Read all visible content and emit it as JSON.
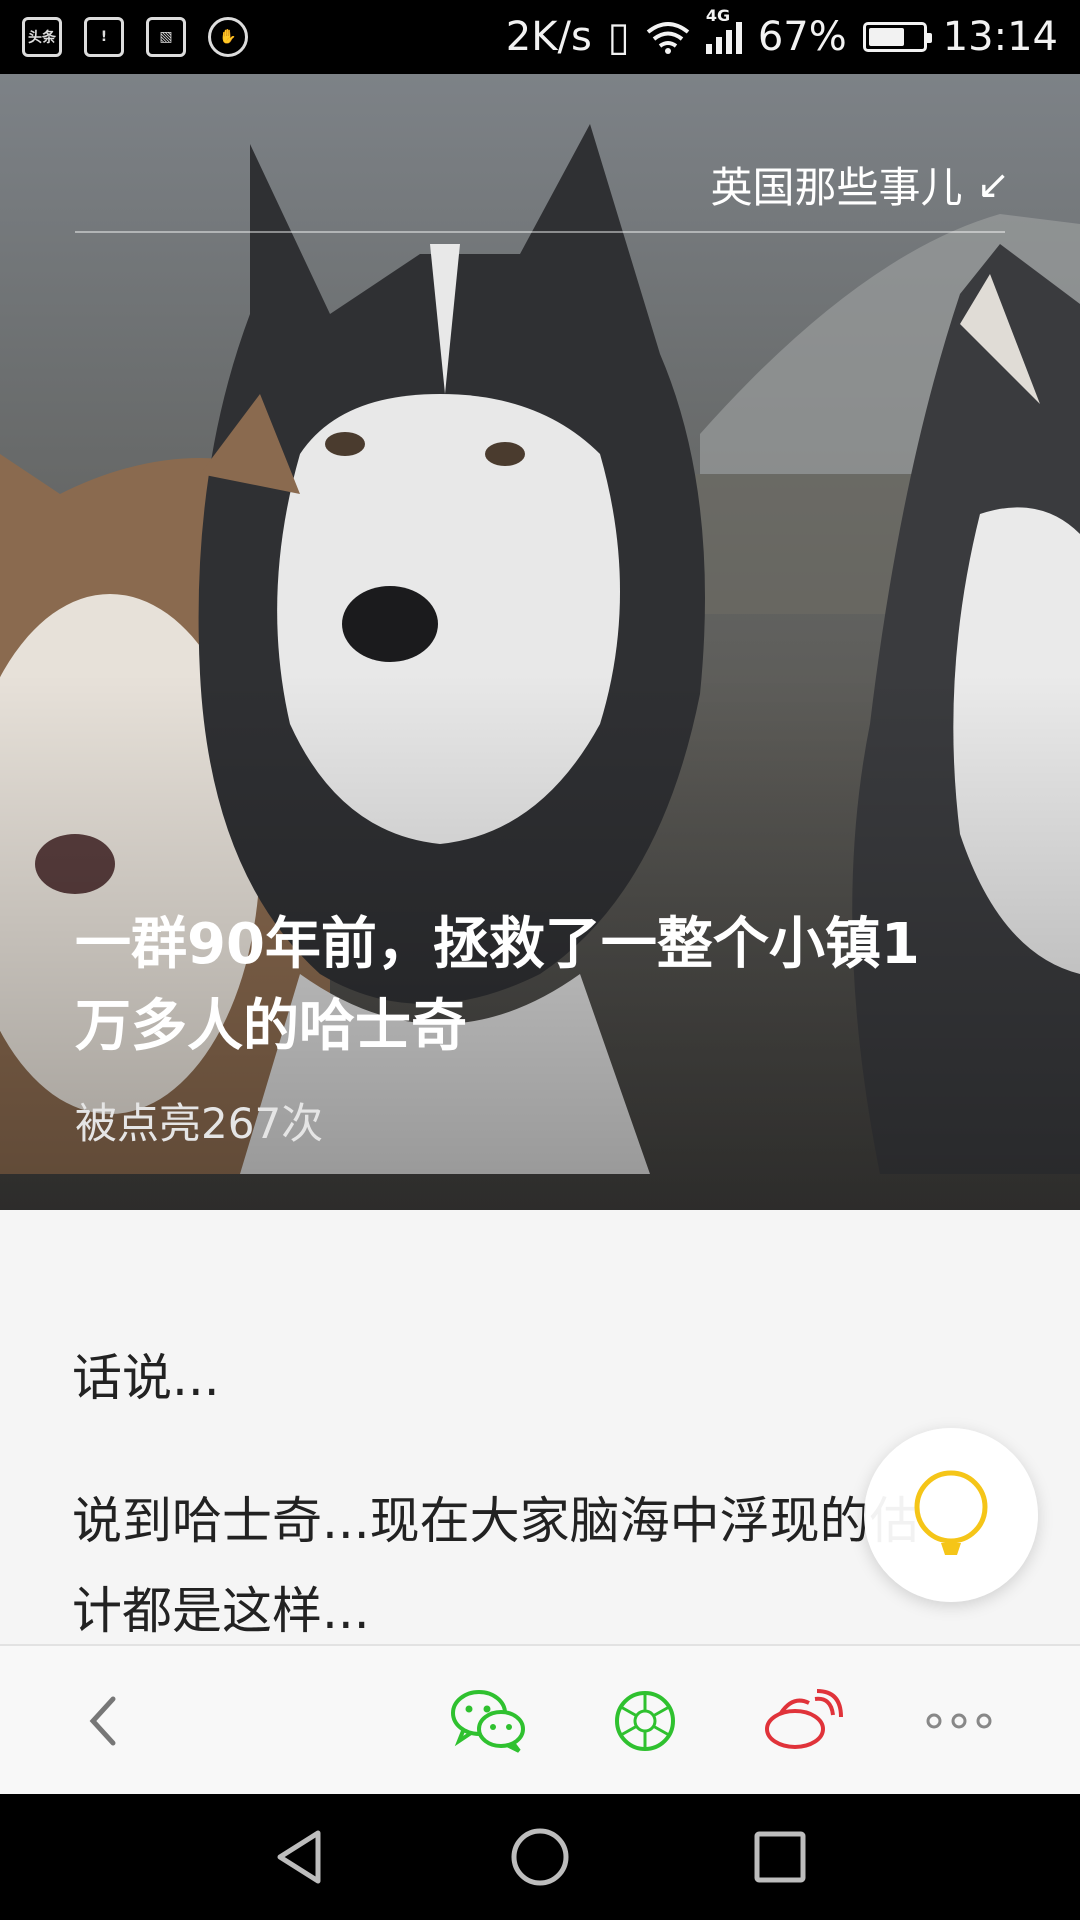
{
  "status_bar": {
    "app_icons": [
      "头条",
      "battery-alert",
      "image",
      "hand"
    ],
    "app_icon_label": "头条",
    "net_speed": "2K/s",
    "network_type": "4G",
    "battery_percent": "67%",
    "battery_level": 0.67,
    "time": "13:14"
  },
  "hero": {
    "channel_name": "英国那些事儿",
    "channel_arrow": "↙",
    "title": "一群90年前，拯救了一整个小镇1万多人的哈士奇",
    "lit_count": "被点亮267次"
  },
  "article": {
    "paragraph_1": "话说...",
    "paragraph_2": "说到哈士奇...现在大家脑海中浮现的估计都是这样..."
  },
  "toolbar": {
    "back": "back-icon",
    "wechat": "wechat-icon",
    "moments": "moments-icon",
    "weibo": "weibo-icon",
    "more": "more-icon"
  },
  "colors": {
    "wechat_green": "#2fc12f",
    "weibo_red": "#e0333a",
    "bulb_yellow": "#f5c518"
  }
}
